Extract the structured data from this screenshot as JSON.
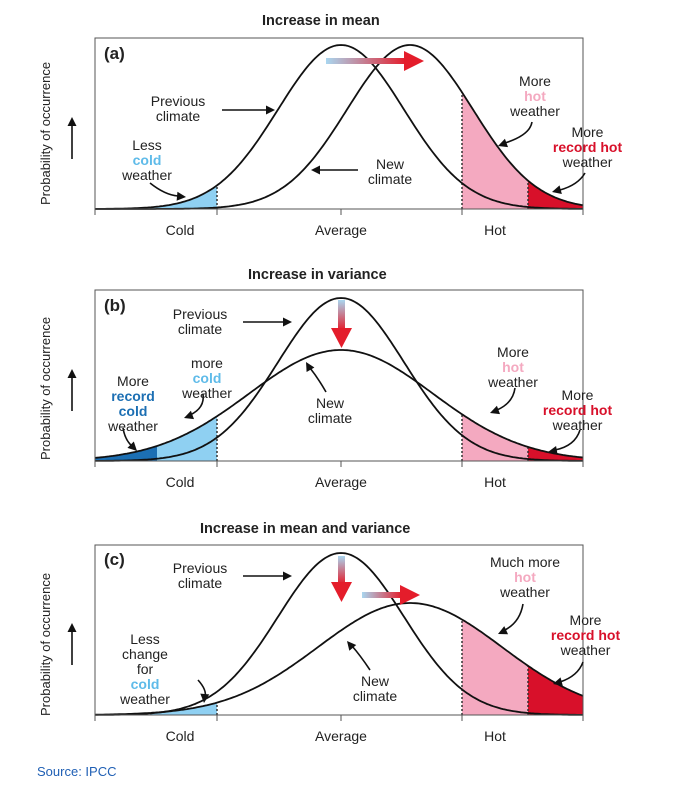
{
  "y_label": "Probability of occurrence",
  "source": "Source: IPCC",
  "x_ticks": [
    "Cold",
    "Average",
    "Hot"
  ],
  "colors": {
    "hot": "#f4a9c0",
    "record_hot": "#d8102a",
    "cold": "#8fd0f2",
    "record_cold": "#1c6fb3"
  },
  "panels": [
    {
      "title": "Increase in mean",
      "label": "(a)",
      "prev": "Previous climate",
      "new": "New climate",
      "ann": {
        "cold": [
          "Less",
          "cold",
          "weather"
        ],
        "hot": [
          "More",
          "hot",
          "weather"
        ],
        "rec": [
          "More",
          "record hot",
          "weather"
        ]
      }
    },
    {
      "title": "Increase in variance",
      "label": "(b)",
      "prev": "Previous climate",
      "new": "New climate",
      "ann": {
        "reccold": [
          "More",
          "record",
          "cold",
          "weather"
        ],
        "cold": [
          "more",
          "cold",
          "weather"
        ],
        "hot": [
          "More",
          "hot",
          "weather"
        ],
        "rec": [
          "More",
          "record hot",
          "weather"
        ]
      }
    },
    {
      "title": "Increase in mean and variance",
      "label": "(c)",
      "prev": "Previous climate",
      "new": "New climate",
      "ann": {
        "cold": [
          "Less",
          "change",
          "for",
          "cold",
          "weather"
        ],
        "hot": [
          "Much more",
          "hot",
          "weather"
        ],
        "rec": [
          "More",
          "record hot",
          "weather"
        ]
      }
    }
  ]
}
